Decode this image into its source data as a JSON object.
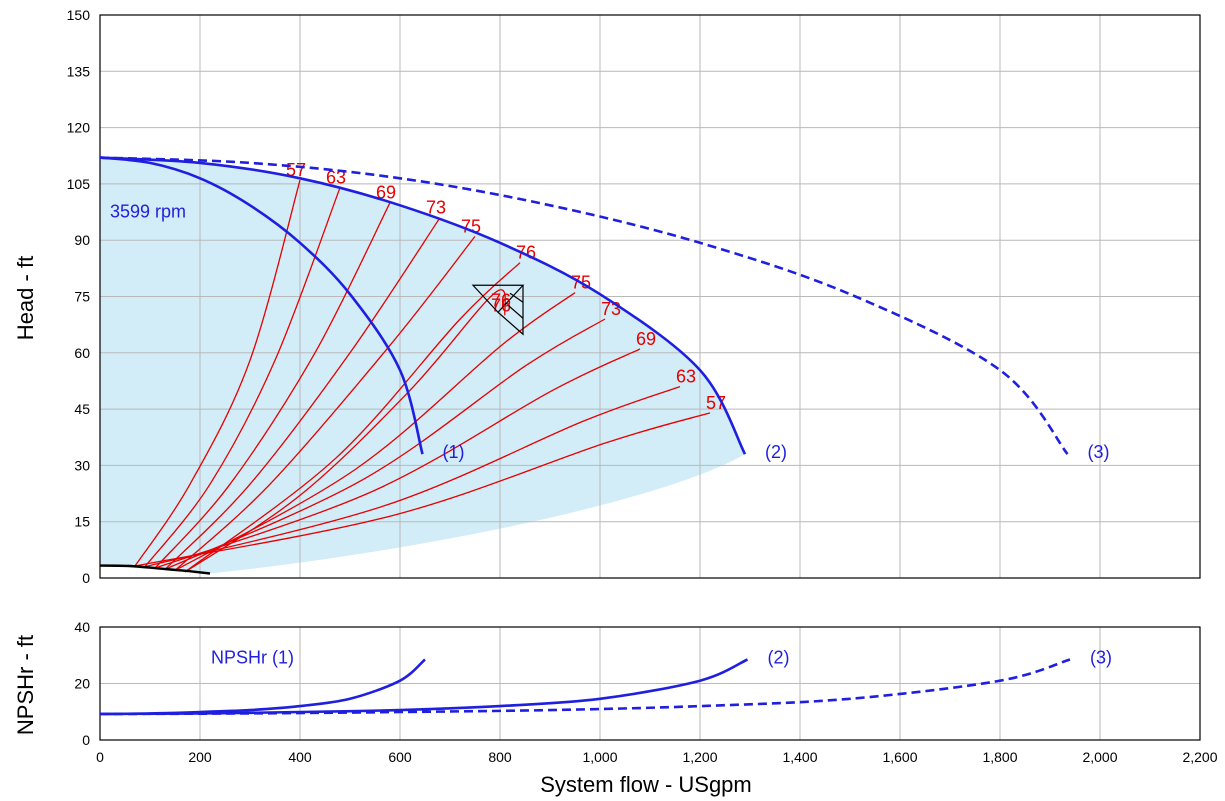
{
  "chart_data": [
    {
      "type": "line",
      "name": "head-chart",
      "ylabel": "Head - ft",
      "xlim": [
        0,
        2200
      ],
      "ylim": [
        0,
        150
      ],
      "x_ticks": [
        "0",
        "200",
        "400",
        "600",
        "800",
        "1,000",
        "1,200",
        "1,400",
        "1,600",
        "1,800",
        "2,000",
        "2,200"
      ],
      "y_ticks": [
        "0",
        "15",
        "30",
        "45",
        "60",
        "75",
        "90",
        "105",
        "120",
        "135",
        "150"
      ],
      "speed_label": "3599 rpm",
      "grid": true,
      "series": [
        {
          "label": "(1)",
          "style": "solid",
          "points": [
            [
              0,
              112
            ],
            [
              100,
              110.6
            ],
            [
              200,
              106.5
            ],
            [
              300,
              99.3
            ],
            [
              400,
              89.3
            ],
            [
              500,
              75.6
            ],
            [
              600,
              55.4
            ],
            [
              645,
              33
            ]
          ]
        },
        {
          "label": "(2)",
          "style": "solid",
          "points": [
            [
              0,
              112
            ],
            [
              200,
              110.6
            ],
            [
              400,
              106.5
            ],
            [
              600,
              99.3
            ],
            [
              800,
              89.3
            ],
            [
              1000,
              75.6
            ],
            [
              1200,
              55.4
            ],
            [
              1290,
              33
            ]
          ]
        },
        {
          "label": "(3)",
          "style": "dashed",
          "points": [
            [
              0,
              112
            ],
            [
              300,
              110.6
            ],
            [
              600,
              106.5
            ],
            [
              900,
              99.3
            ],
            [
              1200,
              89.3
            ],
            [
              1500,
              75.6
            ],
            [
              1800,
              55.4
            ],
            [
              1935,
              33
            ]
          ]
        }
      ],
      "system_curve": [
        [
          0,
          3.3
        ],
        [
          60,
          3.2
        ],
        [
          120,
          2.5
        ],
        [
          180,
          1.8
        ],
        [
          220,
          1.2
        ]
      ],
      "efficiency_curves": [
        {
          "label": "57",
          "points": [
            [
              70,
              3.2
            ],
            [
              180,
              25
            ],
            [
              300,
              58
            ],
            [
              400,
              106
            ]
          ],
          "end_label": "57",
          "end_point": [
            1220,
            44
          ]
        },
        {
          "label": "63",
          "points": [
            [
              90,
              3
            ],
            [
              220,
              25
            ],
            [
              350,
              58
            ],
            [
              480,
              104
            ]
          ],
          "end_label": "63",
          "end_point": [
            1160,
            51
          ]
        },
        {
          "label": "69",
          "points": [
            [
              110,
              2.6
            ],
            [
              260,
              25
            ],
            [
              430,
              60
            ],
            [
              580,
              100
            ]
          ],
          "end_label": "69",
          "end_point": [
            1080,
            61
          ]
        },
        {
          "label": "73",
          "points": [
            [
              130,
              2.3
            ],
            [
              300,
              25
            ],
            [
              500,
              60
            ],
            [
              680,
              96
            ]
          ],
          "end_label": "73",
          "end_point": [
            1010,
            69
          ]
        },
        {
          "label": "75",
          "points": [
            [
              150,
              2
            ],
            [
              340,
              25
            ],
            [
              580,
              62
            ],
            [
              750,
              91
            ]
          ],
          "end_label": "75",
          "end_point": [
            950,
            76
          ]
        },
        {
          "label": "76",
          "points": [
            [
              170,
              1.6
            ],
            [
              400,
              22
            ],
            [
              620,
              50
            ],
            [
              790,
              76
            ],
            [
              810,
              70
            ]
          ],
          "end_label": "76",
          "end_point": [
            840,
            84
          ]
        }
      ],
      "bep_label": "76",
      "bep_point": [
        810,
        74
      ]
    },
    {
      "type": "line",
      "name": "npshr-chart",
      "ylabel": "NPSHr - ft",
      "xlabel": "System flow - USgpm",
      "xlim": [
        0,
        2200
      ],
      "ylim": [
        0,
        40
      ],
      "y_ticks": [
        "0",
        "20",
        "40"
      ],
      "grid": true,
      "series": [
        {
          "label": "NPSHr (1)",
          "style": "solid",
          "points": [
            [
              0,
              9.2
            ],
            [
              100,
              9.4
            ],
            [
              200,
              9.9
            ],
            [
              300,
              10.6
            ],
            [
              400,
              12
            ],
            [
              500,
              14.6
            ],
            [
              600,
              21
            ],
            [
              650,
              28.5
            ]
          ]
        },
        {
          "label": "(2)",
          "style": "solid",
          "points": [
            [
              0,
              9.2
            ],
            [
              200,
              9.4
            ],
            [
              400,
              9.9
            ],
            [
              600,
              10.6
            ],
            [
              800,
              12
            ],
            [
              1000,
              14.6
            ],
            [
              1200,
              21
            ],
            [
              1295,
              28.5
            ]
          ]
        },
        {
          "label": "(3)",
          "style": "dashed",
          "points": [
            [
              0,
              9.2
            ],
            [
              300,
              9.4
            ],
            [
              600,
              9.9
            ],
            [
              900,
              10.6
            ],
            [
              1200,
              12
            ],
            [
              1500,
              14.6
            ],
            [
              1800,
              21
            ],
            [
              1940,
              28.5
            ]
          ]
        }
      ]
    }
  ],
  "colors": {
    "pump_curve": "#1f1fe0",
    "efficiency": "#e60000",
    "fill": "#d2ecf8",
    "grid": "#b9b9b9",
    "system_curve": "#000000"
  }
}
